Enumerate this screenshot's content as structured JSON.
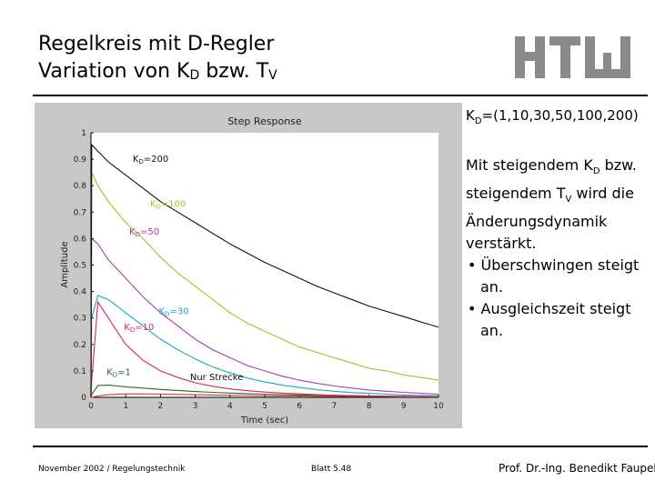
{
  "slide": {
    "title_line1": "Regelkreis mit D-Regler",
    "title_line2_pre": "Variation von K",
    "title_line2_sub1": "D",
    "title_line2_mid": " bzw. T",
    "title_line2_sub2": "V",
    "kd_set": {
      "pre": "K",
      "sub": "D",
      "post": "=(1,10,30,50,100,200)"
    },
    "desc": {
      "line1_pre": "Mit steigendem K",
      "line1_sub": "D",
      "line1_post": " bzw. steigendem T",
      "line1_sub2": "V",
      "line1_end": " wird die Änderungsdynamik verstärkt.",
      "bullet1": "• Überschwingen steigt an.",
      "bullet2": "• Ausgleichszeit steigt an."
    },
    "footer_left": "November 2002 / Regelungstechnik",
    "footer_center": "Blatt 5.48",
    "footer_right": "Prof. Dr.-Ing. Benedikt Faupel"
  },
  "chart_data": {
    "type": "line",
    "title": "Step Response",
    "xlabel": "Time (sec)",
    "ylabel": "Amplitude",
    "xlim": [
      0,
      10
    ],
    "ylim": [
      0,
      1
    ],
    "xticks": [
      "0",
      "1",
      "2",
      "3",
      "4",
      "5",
      "6",
      "7",
      "8",
      "9",
      "10"
    ],
    "yticks": [
      "0",
      "0.1",
      "0.2",
      "0.3",
      "0.4",
      "0.5",
      "0.6",
      "0.7",
      "0.8",
      "0.9",
      "1"
    ],
    "grid": false,
    "x": [
      0.02,
      0.2,
      0.5,
      1,
      1.5,
      2,
      2.5,
      3,
      3.5,
      4,
      4.5,
      5,
      5.5,
      6,
      6.5,
      7,
      7.5,
      8,
      8.5,
      9,
      9.5,
      10
    ],
    "series": [
      {
        "name": "Nur Strecke",
        "color": "#d8372a",
        "values": [
          0.0,
          0.005,
          0.01,
          0.013,
          0.013,
          0.012,
          0.011,
          0.01,
          0.009,
          0.008,
          0.007,
          0.006,
          0.005,
          0.005,
          0.004,
          0.004,
          0.003,
          0.003,
          0.003,
          0.002,
          0.002,
          0.002
        ]
      },
      {
        "name": "KD=1",
        "color": "#2a6a2a",
        "values": [
          0.01,
          0.045,
          0.046,
          0.04,
          0.035,
          0.03,
          0.026,
          0.022,
          0.019,
          0.016,
          0.014,
          0.012,
          0.01,
          0.009,
          0.008,
          0.007,
          0.006,
          0.005,
          0.004,
          0.004,
          0.003,
          0.003
        ]
      },
      {
        "name": "KD=10",
        "color": "#d4285a",
        "values": [
          0.06,
          0.36,
          0.3,
          0.2,
          0.14,
          0.1,
          0.075,
          0.055,
          0.042,
          0.032,
          0.025,
          0.02,
          0.016,
          0.013,
          0.01,
          0.008,
          0.007,
          0.005,
          0.004,
          0.003,
          0.003,
          0.002
        ]
      },
      {
        "name": "KD=30",
        "color": "#18a8c8",
        "values": [
          0.3,
          0.385,
          0.37,
          0.32,
          0.27,
          0.22,
          0.18,
          0.145,
          0.115,
          0.092,
          0.073,
          0.058,
          0.046,
          0.037,
          0.029,
          0.023,
          0.018,
          0.015,
          0.012,
          0.009,
          0.007,
          0.006
        ]
      },
      {
        "name": "KD=50",
        "color": "#a83ab0",
        "values": [
          0.6,
          0.58,
          0.52,
          0.45,
          0.38,
          0.32,
          0.27,
          0.22,
          0.18,
          0.15,
          0.12,
          0.1,
          0.08,
          0.065,
          0.053,
          0.043,
          0.035,
          0.028,
          0.023,
          0.019,
          0.015,
          0.012
        ]
      },
      {
        "name": "KD=100",
        "color": "#b8b820",
        "values": [
          0.85,
          0.8,
          0.74,
          0.66,
          0.6,
          0.53,
          0.47,
          0.42,
          0.37,
          0.32,
          0.28,
          0.25,
          0.22,
          0.19,
          0.17,
          0.15,
          0.13,
          0.11,
          0.1,
          0.085,
          0.075,
          0.065
        ]
      },
      {
        "name": "KD=200",
        "color": "#111111",
        "values": [
          0.955,
          0.93,
          0.89,
          0.84,
          0.79,
          0.74,
          0.7,
          0.66,
          0.62,
          0.58,
          0.545,
          0.51,
          0.48,
          0.45,
          0.42,
          0.395,
          0.37,
          0.345,
          0.325,
          0.305,
          0.285,
          0.265
        ]
      }
    ],
    "annotations": [
      {
        "text": "KD=200",
        "x": 1.2,
        "y": 0.89,
        "color": "#111111"
      },
      {
        "text": "KD=100",
        "x": 1.7,
        "y": 0.72,
        "color": "#b8b820"
      },
      {
        "text": "KD=50",
        "x": 1.1,
        "y": 0.615,
        "color": "#a83ab0"
      },
      {
        "text": "KD=30",
        "x": 1.95,
        "y": 0.315,
        "color": "#18a8c8"
      },
      {
        "text": "KD=10",
        "x": 0.95,
        "y": 0.255,
        "color": "#d4285a"
      },
      {
        "text": "KD=1",
        "x": 0.45,
        "y": 0.085,
        "color": "#2a6a2a"
      },
      {
        "text": "Nur Strecke",
        "x": 2.85,
        "y": 0.065,
        "color": "#111111"
      }
    ]
  }
}
